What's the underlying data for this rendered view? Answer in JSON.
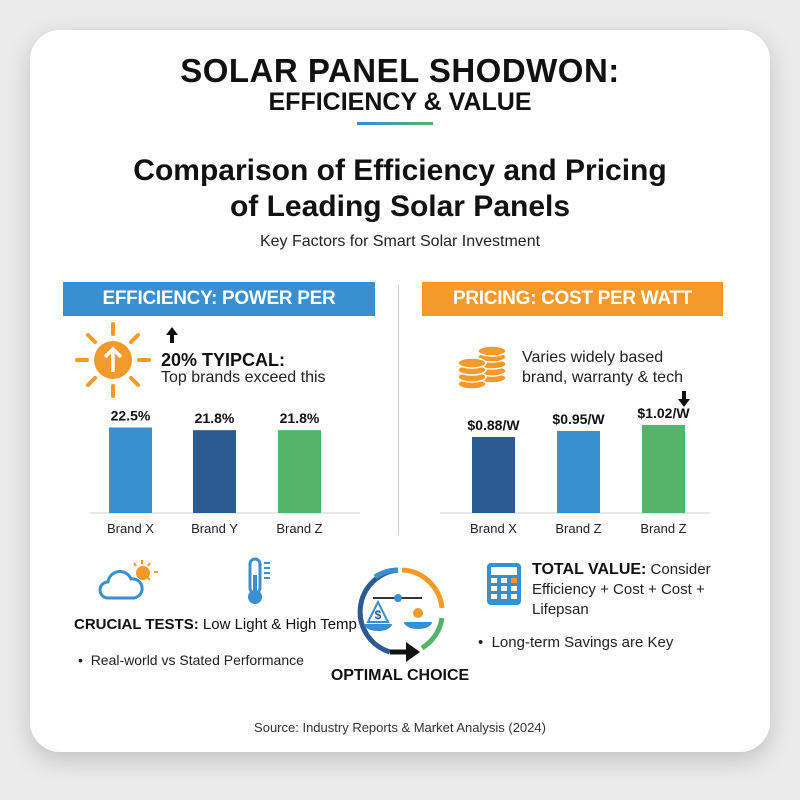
{
  "header": {
    "title_line1": "SOLAR PANEL SHODWON:",
    "title_line2": "EFFICIENCY & VALUE",
    "heading_line1": "Comparison of Efficiency and Pricing",
    "heading_line2": "of Leading Solar Panels",
    "subtitle": "Key Factors for Smart Solar Investment"
  },
  "efficiency": {
    "banner": "EFFICIENCY: POWER PER SQUARE MËTER",
    "note_bold": "20% TYIPCAL:",
    "note": "Top brands exceed this",
    "icon": "sun-up-arrow-icon"
  },
  "pricing": {
    "banner": "PRICING: COST PER WATT",
    "note_line1": "Varies widely based",
    "note_line2": "brand, warranty & tech",
    "icon": "coins-icon"
  },
  "bottom": {
    "tests_bold": "CRUCIAL TESTS:",
    "tests": " Low Light & High Temp",
    "tests_bullet": "Real-world vs Stated Performance",
    "center_label": "OPTIMAL CHOICE",
    "value_bold": "TOTAL VALUE:",
    "value": " Consider",
    "value_line2": "Efficiency + Cost + Cost +",
    "value_line3": "Lifepsan",
    "value_bullet": "Long-term Savings are Key"
  },
  "source": "Source: Industry Reports & Market Analysis (2024)",
  "colors": {
    "blue": "#3a8fd0",
    "navy": "#2c5a92",
    "green": "#56b36a",
    "orange": "#f39a2b"
  },
  "chart_data": [
    {
      "type": "bar",
      "categories": [
        "Brand X",
        "Brand Y",
        "Brand Z"
      ],
      "values": [
        22.5,
        21.8,
        21.8
      ],
      "labels": [
        "22.5%",
        "21.8%",
        "21.8%"
      ],
      "colors": [
        "#3a8fd0",
        "#2c5a92",
        "#56b36a"
      ],
      "ylim": [
        0,
        25
      ],
      "grid": false
    },
    {
      "type": "bar",
      "categories": [
        "Brand X",
        "Brand Z",
        "Brand Z"
      ],
      "values": [
        0.88,
        0.95,
        1.02
      ],
      "labels": [
        "$0.88/W",
        "$0.95/W",
        "$1.02/W"
      ],
      "colors": [
        "#2c5a92",
        "#3a8fd0",
        "#56b36a"
      ],
      "ylim": [
        0,
        1.1
      ],
      "grid": false
    }
  ]
}
